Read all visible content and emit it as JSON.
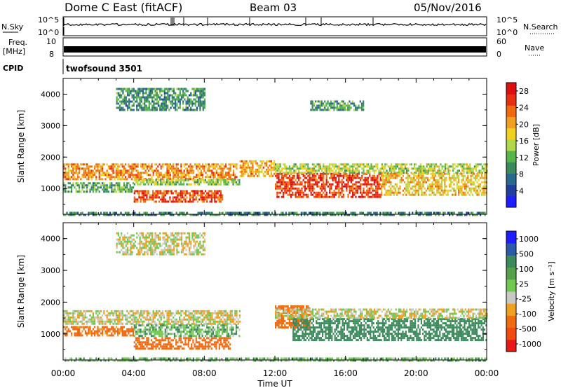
{
  "header": {
    "radar": "Dome C East (fitACF)",
    "beam": "Beam 03",
    "date": "05/Nov/2016"
  },
  "strips": {
    "nsky": {
      "label": "N.Sky",
      "tick_top": "10^5",
      "tick_bottom": "10^0"
    },
    "nsearch": {
      "label": "N.Search",
      "tick_top": "10^5",
      "tick_bottom": "10^0"
    },
    "freq": {
      "label_top": "Freq.",
      "label_bottom": "[MHz]",
      "tick_top": "10",
      "tick_bottom": "8"
    },
    "nave": {
      "label": "Nave",
      "tick_top": "60",
      "tick_bottom": "0"
    },
    "cpid": {
      "label": "CPID",
      "value": "twofsound 3501"
    }
  },
  "chart_data": [
    {
      "type": "heatmap",
      "title": "",
      "xlabel": "",
      "ylabel": "Slant Range [km]",
      "x_ticks": [
        "00:00",
        "04:00",
        "08:00",
        "12:00",
        "16:00",
        "20:00",
        "00:00"
      ],
      "y_ticks": [
        "1000",
        "2000",
        "3000",
        "4000"
      ],
      "xlim_hours": [
        0,
        24
      ],
      "ylim_km": [
        180,
        4500
      ],
      "colorbar": {
        "label": "Power [dB]",
        "ticks": [
          "4",
          "8",
          "12",
          "16",
          "20",
          "24",
          "28"
        ],
        "range": [
          0,
          30
        ]
      },
      "echo_bands": [
        {
          "t_start": 0.0,
          "t_end": 9.8,
          "range_start": 1300,
          "range_end": 1800,
          "power": 22
        },
        {
          "t_start": 0.0,
          "t_end": 4.0,
          "range_start": 900,
          "range_end": 1200,
          "power": 11
        },
        {
          "t_start": 4.0,
          "t_end": 9.0,
          "range_start": 550,
          "range_end": 950,
          "power": 26
        },
        {
          "t_start": 4.0,
          "t_end": 10.0,
          "range_start": 1100,
          "range_end": 1300,
          "power": 14
        },
        {
          "t_start": 10.0,
          "t_end": 12.0,
          "range_start": 1400,
          "range_end": 1900,
          "power": 21
        },
        {
          "t_start": 12.0,
          "t_end": 18.0,
          "range_start": 700,
          "range_end": 1500,
          "power": 27
        },
        {
          "t_start": 12.0,
          "t_end": 24.0,
          "range_start": 1500,
          "range_end": 1800,
          "power": 15
        },
        {
          "t_start": 18.0,
          "t_end": 24.0,
          "range_start": 800,
          "range_end": 1500,
          "power": 19
        },
        {
          "t_start": 3.0,
          "t_end": 8.0,
          "range_start": 3500,
          "range_end": 4200,
          "power": 9
        },
        {
          "t_start": 14.0,
          "t_end": 17.0,
          "range_start": 3500,
          "range_end": 3800,
          "power": 10
        },
        {
          "t_start": 0.0,
          "t_end": 24.0,
          "range_start": 180,
          "range_end": 260,
          "power": 8
        }
      ]
    },
    {
      "type": "heatmap",
      "title": "",
      "xlabel": "Time UT",
      "ylabel": "Slant Range [km]",
      "x_ticks": [
        "00:00",
        "04:00",
        "08:00",
        "12:00",
        "16:00",
        "20:00",
        "00:00"
      ],
      "y_ticks": [
        "1000",
        "2000",
        "3000",
        "4000"
      ],
      "xlim_hours": [
        0,
        24
      ],
      "ylim_km": [
        180,
        4500
      ],
      "colorbar": {
        "label": "Velocity [m s⁻¹]",
        "ticks": [
          "1000",
          "500",
          "100",
          "25",
          "-25",
          "-100",
          "-500",
          "-1000"
        ]
      },
      "echo_bands": [
        {
          "t_start": 0.0,
          "t_end": 10.0,
          "range_start": 1350,
          "range_end": 1750,
          "velocity": 0
        },
        {
          "t_start": 0.0,
          "t_end": 4.0,
          "range_start": 950,
          "range_end": 1250,
          "velocity": -150
        },
        {
          "t_start": 4.0,
          "t_end": 9.5,
          "range_start": 550,
          "range_end": 900,
          "velocity": -200
        },
        {
          "t_start": 4.0,
          "t_end": 10.0,
          "range_start": 950,
          "range_end": 1300,
          "velocity": 80
        },
        {
          "t_start": 12.0,
          "t_end": 14.0,
          "range_start": 1200,
          "range_end": 1900,
          "velocity": -300
        },
        {
          "t_start": 13.0,
          "t_end": 24.0,
          "range_start": 800,
          "range_end": 1500,
          "velocity": 300
        },
        {
          "t_start": 12.0,
          "t_end": 24.0,
          "range_start": 1500,
          "range_end": 1800,
          "velocity": 0
        },
        {
          "t_start": 3.0,
          "t_end": 8.0,
          "range_start": 3500,
          "range_end": 4200,
          "velocity": 0
        },
        {
          "t_start": 0.0,
          "t_end": 24.0,
          "range_start": 180,
          "range_end": 260,
          "velocity": 60
        }
      ]
    }
  ]
}
